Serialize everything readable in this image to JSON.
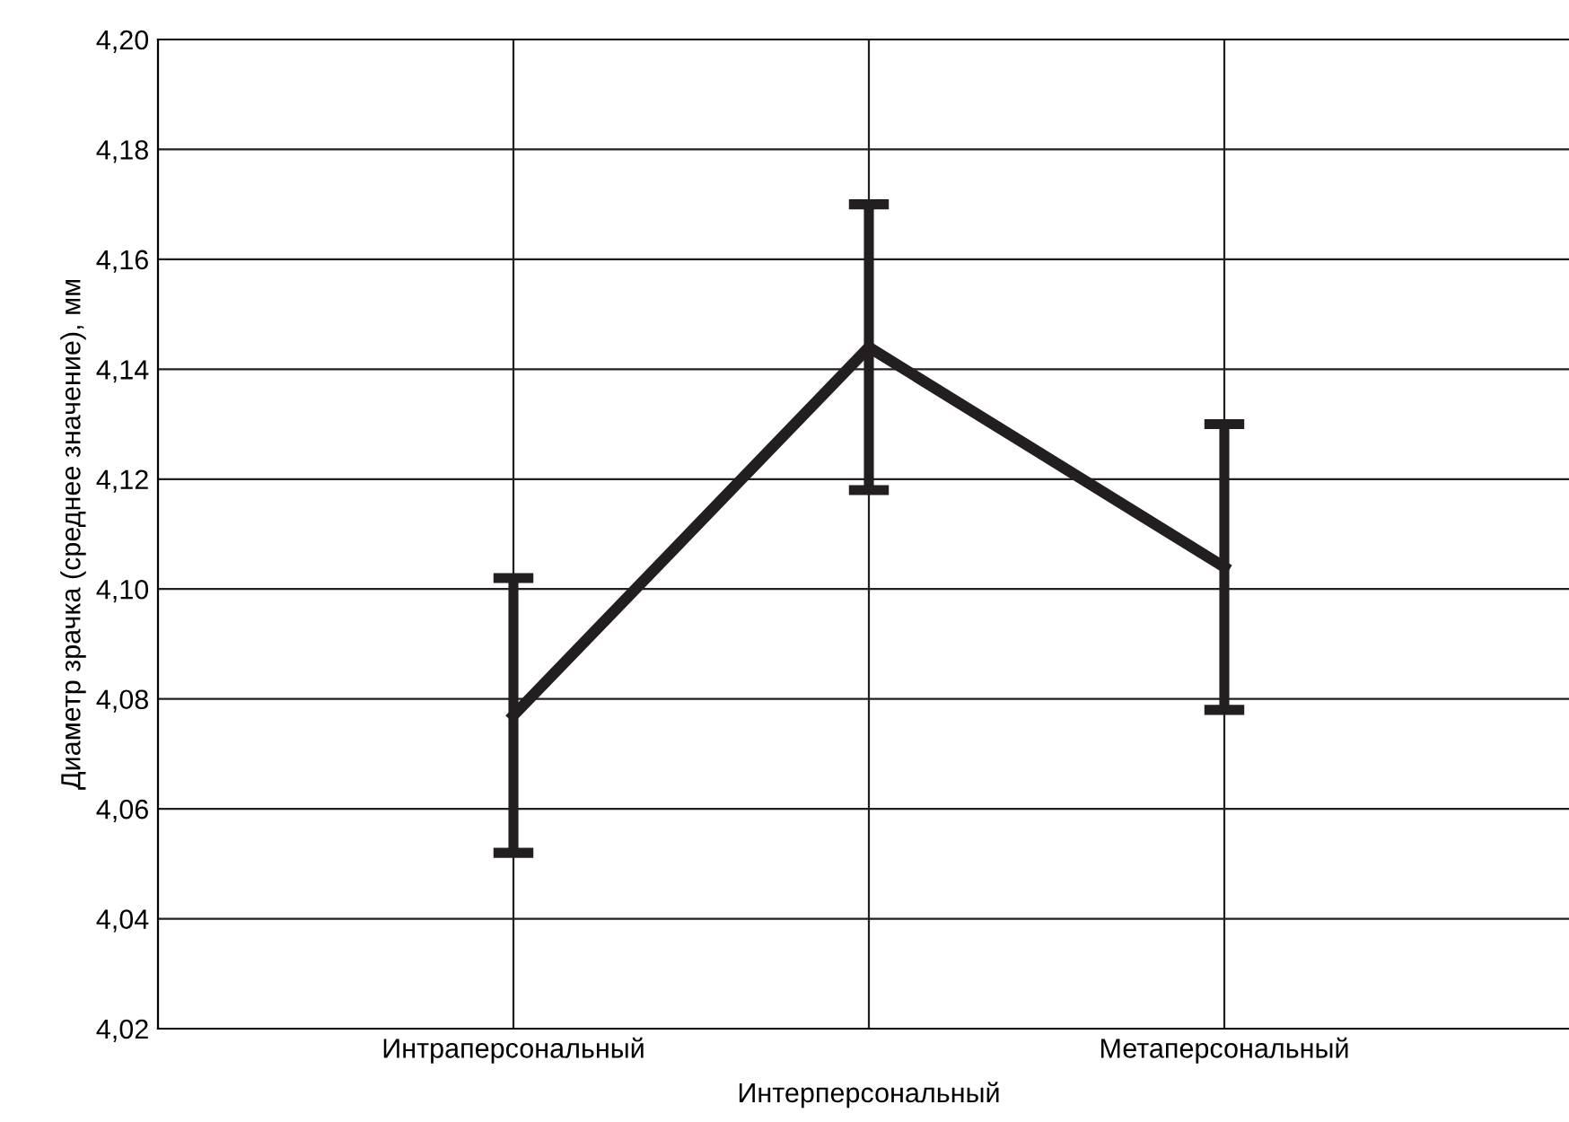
{
  "chart_data": {
    "type": "line",
    "ylabel": "Диаметр зрачка (среднее значение), мм",
    "categories": [
      "Интраперсональный",
      "Интерперсональный",
      "Метаперсональный"
    ],
    "series": [
      {
        "color": "#231f20",
        "values": [
          4.077,
          4.144,
          4.104
        ],
        "errors": [
          0.025,
          0.026,
          0.026
        ]
      }
    ],
    "ylim": [
      4.02,
      4.2
    ],
    "yticks": [
      {
        "value": 4.02,
        "label": "4,02"
      },
      {
        "value": 4.04,
        "label": "4,04"
      },
      {
        "value": 4.06,
        "label": "4,06"
      },
      {
        "value": 4.08,
        "label": "4,08"
      },
      {
        "value": 4.1,
        "label": "4,10"
      },
      {
        "value": 4.12,
        "label": "4,12"
      },
      {
        "value": 4.14,
        "label": "4,14"
      },
      {
        "value": 4.16,
        "label": "4,16"
      },
      {
        "value": 4.18,
        "label": "4,18"
      },
      {
        "value": 4.2,
        "label": "4,20"
      }
    ],
    "grid": true,
    "marker": "none",
    "line_style": "solid",
    "legend": false
  }
}
